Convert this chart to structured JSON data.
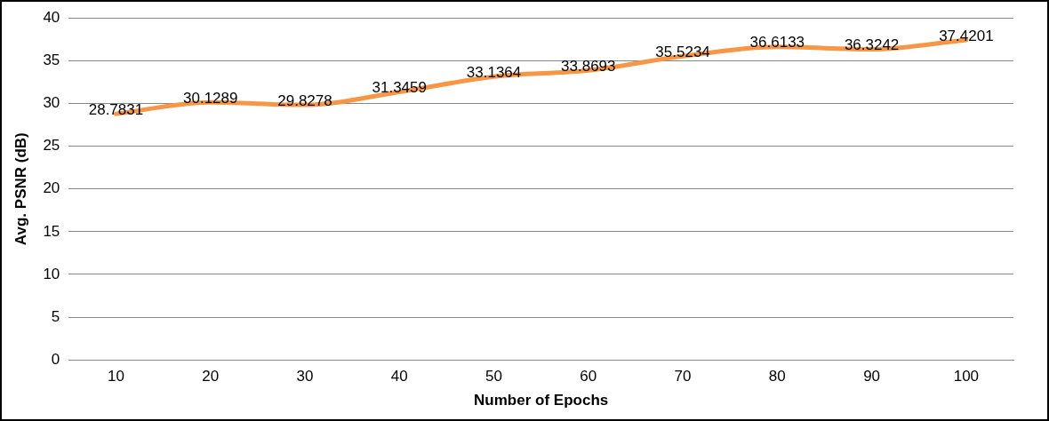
{
  "chart_data": {
    "type": "line",
    "xlabel": "Number of Epochs",
    "ylabel": "Avg. PSNR (dB)",
    "categories": [
      "10",
      "20",
      "30",
      "40",
      "50",
      "60",
      "70",
      "80",
      "90",
      "100"
    ],
    "series": [
      {
        "color": "#f79646",
        "values": [
          28.7831,
          30.1289,
          29.8278,
          31.3459,
          33.1364,
          33.8693,
          35.5234,
          36.6133,
          36.3242,
          37.4201
        ]
      }
    ],
    "ylim": [
      0,
      40
    ],
    "yticks": [
      0,
      5,
      10,
      15,
      20,
      25,
      30,
      35,
      40
    ],
    "grid": "y",
    "data_labels": true,
    "marker": "none",
    "line_style": "solid",
    "legend": false
  }
}
